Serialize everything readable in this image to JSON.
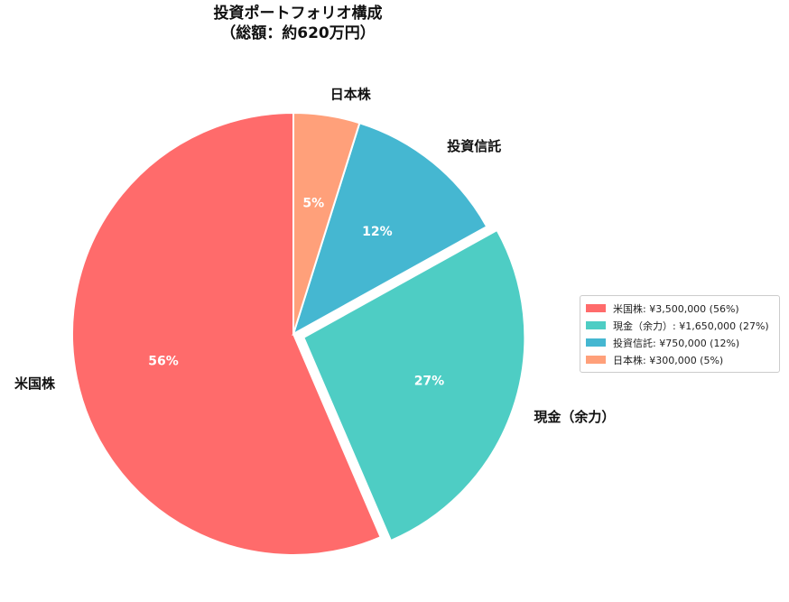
{
  "chart_data": {
    "type": "pie",
    "title": "投資ポートフォリオ構成",
    "subtitle": "（総額：約620万円）",
    "slices": [
      {
        "label": "米国株",
        "value": 3500000,
        "percent_label": "56%",
        "color": "#ff6b6b",
        "legend": "米国株: ¥3,500,000 (56%)",
        "exploded": false
      },
      {
        "label": "現金（余力）",
        "value": 1650000,
        "percent_label": "27%",
        "color": "#4ecdc4",
        "legend": "現金（余力）: ¥1,650,000 (27%)",
        "exploded": true
      },
      {
        "label": "投資信託",
        "value": 750000,
        "percent_label": "12%",
        "color": "#45b7d1",
        "legend": "投資信託: ¥750,000 (12%)",
        "exploded": false
      },
      {
        "label": "日本株",
        "value": 300000,
        "percent_label": "5%",
        "color": "#ffa07a",
        "legend": "日本株: ¥300,000 (5%)",
        "exploded": false
      }
    ],
    "legend_position": "right",
    "start_angle_deg": 90,
    "direction": "counterclockwise"
  }
}
